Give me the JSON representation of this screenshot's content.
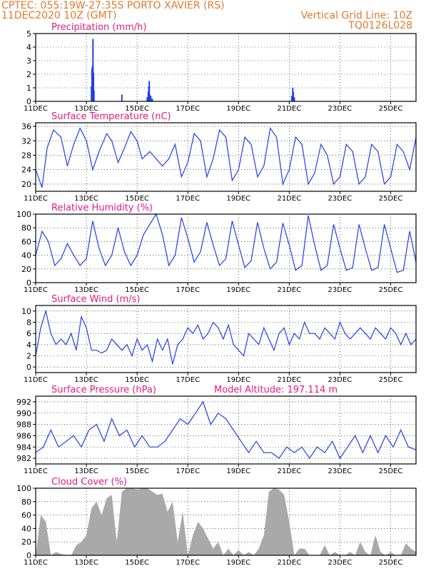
{
  "header": {
    "left_line1": "CPTEC:   055:19W-27:35S   PORTO XAVIER (RS)",
    "left_line2": "11DEC2020 10Z (GMT)",
    "right_line1": "Vertical Grid Line: 10Z",
    "right_line2": "TQ0126L028"
  },
  "colors": {
    "header": "#e07a2c",
    "title": "#e5197f",
    "series": "#1f3fe6",
    "cloud": "#a9a9a9"
  },
  "x_tick_labels": [
    "11DEC",
    "13DEC",
    "15DEC",
    "17DEC",
    "19DEC",
    "21DEC",
    "23DEC",
    "25DEC"
  ],
  "x_tick_days": [
    0,
    2,
    4,
    6,
    8,
    10,
    12,
    14
  ],
  "chart_data": [
    {
      "title": "Precipitation (mm/h)",
      "type": "bar",
      "ylim": [
        0,
        5
      ],
      "yticks": [
        0,
        1,
        2,
        3,
        4,
        5
      ],
      "x": [
        2.2,
        2.22,
        2.24,
        2.26,
        2.28,
        2.3,
        3.4,
        4.4,
        4.44,
        4.46,
        4.48,
        4.5,
        4.52,
        4.54,
        4.6,
        10.1,
        10.14,
        10.16,
        10.2
      ],
      "values": [
        1.1,
        2.4,
        2.6,
        4.6,
        2.1,
        0.8,
        0.5,
        0.3,
        0.7,
        1.1,
        1.5,
        0.5,
        0.3,
        0.4,
        0.2,
        0.4,
        1.0,
        0.7,
        0.3
      ]
    },
    {
      "title": "Surface Temperature (nC)",
      "type": "line",
      "ylim": [
        18,
        37
      ],
      "yticks": [
        20,
        24,
        28,
        32,
        36
      ],
      "x": [
        0,
        0.25,
        0.45,
        0.7,
        1.0,
        1.25,
        1.5,
        1.75,
        2.0,
        2.25,
        2.5,
        2.8,
        3.0,
        3.25,
        3.5,
        3.75,
        4.0,
        4.2,
        4.5,
        4.75,
        5.0,
        5.25,
        5.5,
        5.75,
        6.0,
        6.25,
        6.5,
        6.75,
        7.0,
        7.25,
        7.5,
        7.75,
        8.0,
        8.25,
        8.5,
        8.75,
        9.0,
        9.25,
        9.5,
        9.75,
        10.0,
        10.25,
        10.5,
        10.75,
        11.0,
        11.25,
        11.5,
        11.75,
        12.0,
        12.25,
        12.5,
        12.75,
        13.0,
        13.25,
        13.5,
        13.75,
        14.0,
        14.25,
        14.5,
        14.75,
        15.0
      ],
      "values": [
        24,
        19,
        30,
        35,
        33,
        25,
        31,
        35.5,
        32,
        24,
        29,
        34,
        32,
        26,
        30,
        34.5,
        32,
        27,
        29,
        27,
        25,
        27,
        31,
        22,
        26,
        34,
        32,
        22,
        27,
        35,
        33,
        21,
        24,
        33,
        31,
        22,
        25,
        35.5,
        33,
        20,
        24,
        33,
        31,
        20,
        23,
        31,
        28,
        20,
        22,
        31,
        29,
        20,
        22,
        31,
        29,
        20,
        22,
        31,
        29,
        24,
        33
      ]
    },
    {
      "title": "Relative Humidity (%)",
      "type": "line",
      "ylim": [
        0,
        100
      ],
      "yticks": [
        0,
        20,
        40,
        60,
        80,
        100
      ],
      "x": [
        0,
        0.25,
        0.5,
        0.75,
        1.0,
        1.25,
        1.5,
        1.75,
        2.0,
        2.25,
        2.5,
        2.75,
        3.0,
        3.25,
        3.5,
        3.75,
        4.0,
        4.25,
        4.5,
        4.75,
        5.0,
        5.25,
        5.5,
        5.75,
        6.0,
        6.25,
        6.5,
        6.75,
        7.0,
        7.25,
        7.5,
        7.75,
        8.0,
        8.25,
        8.5,
        8.75,
        9.0,
        9.25,
        9.5,
        9.75,
        10.0,
        10.25,
        10.5,
        10.75,
        11.0,
        11.25,
        11.5,
        11.75,
        12.0,
        12.25,
        12.5,
        12.75,
        13.0,
        13.25,
        13.5,
        13.75,
        14.0,
        14.25,
        14.5,
        14.75,
        15.0
      ],
      "values": [
        40,
        75,
        60,
        25,
        35,
        57,
        40,
        25,
        35,
        90,
        50,
        25,
        40,
        80,
        45,
        25,
        40,
        70,
        85,
        100,
        70,
        25,
        40,
        95,
        65,
        30,
        45,
        88,
        55,
        25,
        35,
        90,
        55,
        22,
        32,
        88,
        50,
        20,
        30,
        87,
        55,
        18,
        25,
        98,
        55,
        18,
        25,
        85,
        50,
        18,
        22,
        85,
        50,
        18,
        22,
        85,
        50,
        15,
        18,
        75,
        30
      ]
    },
    {
      "title": "Surface Wind (m/s)",
      "type": "line",
      "ylim": [
        -1,
        11
      ],
      "yticks": [
        0,
        2,
        4,
        6,
        8,
        10
      ],
      "x": [
        0,
        0.2,
        0.4,
        0.6,
        0.8,
        1.0,
        1.2,
        1.4,
        1.6,
        1.8,
        2.0,
        2.2,
        2.4,
        2.6,
        2.8,
        3.0,
        3.2,
        3.4,
        3.6,
        3.8,
        4.0,
        4.2,
        4.4,
        4.6,
        4.8,
        5.0,
        5.2,
        5.4,
        5.6,
        5.8,
        6.0,
        6.2,
        6.4,
        6.6,
        6.8,
        7.0,
        7.2,
        7.4,
        7.6,
        7.8,
        8.0,
        8.2,
        8.4,
        8.6,
        8.8,
        9.0,
        9.2,
        9.4,
        9.6,
        9.8,
        10.0,
        10.2,
        10.4,
        10.6,
        10.8,
        11.0,
        11.2,
        11.4,
        11.6,
        11.8,
        12.0,
        12.2,
        12.4,
        12.6,
        12.8,
        13.0,
        13.2,
        13.4,
        13.6,
        13.8,
        14.0,
        14.2,
        14.4,
        14.6,
        14.8,
        15.0
      ],
      "values": [
        2,
        7,
        10,
        6,
        4,
        5,
        4,
        6,
        3,
        9,
        7,
        3,
        3,
        2.5,
        3,
        5,
        4,
        3,
        4,
        2,
        5,
        3,
        4,
        1,
        5,
        3,
        5,
        0.5,
        4,
        5,
        7,
        6,
        7.5,
        5,
        6,
        8,
        7,
        5,
        7.5,
        4,
        3,
        2,
        6,
        5,
        4,
        7,
        5,
        3,
        6,
        7,
        4,
        6,
        5,
        8,
        6,
        6,
        5,
        7,
        6,
        5,
        8,
        6,
        5,
        6,
        7,
        6,
        5,
        7,
        6,
        5,
        7,
        6,
        4,
        6,
        4,
        5
      ]
    },
    {
      "title": "Surface Pressure (hPa)",
      "subtitle": "Model Altitude: 197.114 m",
      "type": "line",
      "ylim": [
        981,
        993
      ],
      "yticks": [
        982,
        984,
        986,
        988,
        990,
        992
      ],
      "x": [
        0,
        0.3,
        0.6,
        0.9,
        1.2,
        1.5,
        1.8,
        2.1,
        2.4,
        2.7,
        3.0,
        3.3,
        3.6,
        3.9,
        4.2,
        4.5,
        4.8,
        5.1,
        5.4,
        5.7,
        6.0,
        6.3,
        6.6,
        6.9,
        7.2,
        7.5,
        7.8,
        8.1,
        8.4,
        8.7,
        9.0,
        9.3,
        9.6,
        9.9,
        10.2,
        10.5,
        10.8,
        11.1,
        11.4,
        11.7,
        12.0,
        12.3,
        12.6,
        12.9,
        13.2,
        13.5,
        13.8,
        14.1,
        14.4,
        14.7,
        15.0
      ],
      "values": [
        983,
        984,
        987,
        984,
        985,
        986,
        984,
        987,
        988,
        985,
        989,
        986,
        987,
        984,
        986,
        984,
        984,
        985,
        987,
        989,
        988,
        990,
        992,
        988,
        990,
        989,
        987,
        985,
        983,
        985,
        983,
        983,
        982,
        984,
        983,
        984,
        982,
        984,
        983,
        985,
        982,
        984,
        986,
        983,
        986,
        983,
        986,
        984,
        987,
        984,
        983.5
      ]
    },
    {
      "title": "Cloud Cover (%)",
      "type": "area",
      "ylim": [
        0,
        100
      ],
      "yticks": [
        0,
        20,
        40,
        60,
        80,
        100
      ],
      "x": [
        0,
        0.2,
        0.4,
        0.6,
        0.8,
        1.0,
        1.2,
        1.4,
        1.6,
        1.8,
        2.0,
        2.2,
        2.4,
        2.6,
        2.8,
        3.0,
        3.2,
        3.4,
        3.6,
        3.8,
        4.0,
        4.2,
        4.4,
        4.6,
        4.8,
        5.0,
        5.2,
        5.4,
        5.6,
        5.8,
        6.0,
        6.2,
        6.4,
        6.6,
        6.8,
        7.0,
        7.2,
        7.4,
        7.6,
        7.8,
        8.0,
        8.2,
        8.4,
        8.6,
        8.8,
        9.0,
        9.2,
        9.4,
        9.6,
        9.8,
        10.0,
        10.2,
        10.4,
        10.6,
        10.8,
        11.0,
        11.2,
        11.4,
        11.6,
        11.8,
        12.0,
        12.2,
        12.4,
        12.6,
        12.8,
        13.0,
        13.2,
        13.4,
        13.6,
        13.8,
        14.0,
        14.2,
        14.4,
        14.6,
        14.8,
        15.0
      ],
      "values": [
        0,
        60,
        50,
        0,
        5,
        2,
        0,
        0,
        15,
        20,
        30,
        70,
        80,
        60,
        85,
        90,
        20,
        95,
        100,
        100,
        98,
        100,
        100,
        95,
        90,
        92,
        65,
        80,
        20,
        65,
        0,
        30,
        50,
        40,
        25,
        10,
        20,
        0,
        10,
        0,
        8,
        0,
        5,
        0,
        10,
        30,
        95,
        100,
        98,
        90,
        50,
        0,
        10,
        10,
        0,
        0,
        0,
        15,
        0,
        5,
        0,
        0,
        5,
        0,
        20,
        5,
        0,
        30,
        5,
        0,
        5,
        0,
        0,
        18,
        10,
        5
      ]
    }
  ]
}
